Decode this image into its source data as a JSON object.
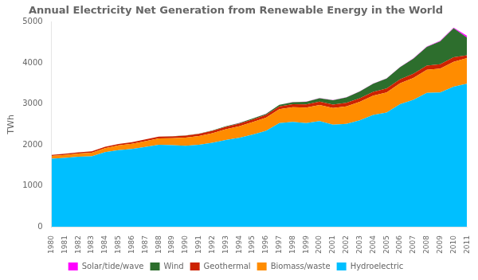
{
  "chart_data": {
    "type": "area",
    "title": "Annual Electricity Net Generation from Renewable Energy in the World",
    "ylabel": "TWh",
    "stacked": true,
    "grid": false,
    "legend": "bottom",
    "x": [
      1980,
      1981,
      1982,
      1983,
      1984,
      1985,
      1986,
      1987,
      1988,
      1989,
      1990,
      1991,
      1992,
      1993,
      1994,
      1995,
      1996,
      1997,
      1998,
      1999,
      2000,
      2001,
      2002,
      2003,
      2004,
      2005,
      2006,
      2007,
      2008,
      2009,
      2010,
      2011
    ],
    "xlim": [
      1980,
      2011
    ],
    "xticks": [
      1980,
      1981,
      1982,
      1983,
      1984,
      1985,
      1986,
      1987,
      1988,
      1989,
      1990,
      1991,
      1992,
      1993,
      1994,
      1995,
      1996,
      1997,
      1998,
      1999,
      2000,
      2001,
      2002,
      2003,
      2004,
      2005,
      2006,
      2007,
      2008,
      2009,
      2010,
      2011
    ],
    "ylim": [
      0,
      5000
    ],
    "yticks": [
      0,
      1000,
      2000,
      3000,
      4000,
      5000
    ],
    "series": [
      {
        "name": "Hydroelectric",
        "color": "#00bfff",
        "values": [
          1660,
          1680,
          1710,
          1720,
          1820,
          1870,
          1900,
          1950,
          2000,
          1990,
          1980,
          2000,
          2050,
          2120,
          2170,
          2250,
          2340,
          2530,
          2560,
          2530,
          2580,
          2490,
          2510,
          2600,
          2730,
          2790,
          2990,
          3100,
          3270,
          3280,
          3420,
          3490
        ]
      },
      {
        "name": "Biomass/waste",
        "color": "#ff8c00",
        "values": [
          70,
          75,
          80,
          90,
          100,
          115,
          125,
          140,
          155,
          170,
          195,
          215,
          235,
          260,
          285,
          305,
          320,
          340,
          360,
          380,
          395,
          410,
          430,
          450,
          470,
          490,
          510,
          535,
          560,
          580,
          605,
          630
        ]
      },
      {
        "name": "Geothermal",
        "color": "#cc2200",
        "values": [
          25,
          27,
          29,
          31,
          33,
          36,
          38,
          41,
          44,
          47,
          50,
          53,
          56,
          59,
          62,
          65,
          68,
          71,
          74,
          77,
          80,
          83,
          86,
          89,
          92,
          95,
          98,
          101,
          105,
          108,
          112,
          68
        ]
      },
      {
        "name": "Wind",
        "color": "#2d6e2d",
        "values": [
          0,
          0,
          0,
          0,
          1,
          1,
          2,
          2,
          3,
          4,
          5,
          7,
          9,
          12,
          16,
          21,
          28,
          37,
          49,
          64,
          85,
          105,
          130,
          165,
          200,
          245,
          295,
          370,
          455,
          560,
          710,
          430
        ]
      },
      {
        "name": "Solar/tide/wave",
        "color": "#ff00ff",
        "values": [
          0,
          0,
          0,
          0,
          0,
          0,
          0,
          0,
          0,
          0,
          1,
          1,
          1,
          1,
          1,
          2,
          2,
          2,
          3,
          3,
          4,
          4,
          4,
          5,
          5,
          5,
          6,
          7,
          9,
          11,
          15,
          45
        ]
      }
    ]
  }
}
